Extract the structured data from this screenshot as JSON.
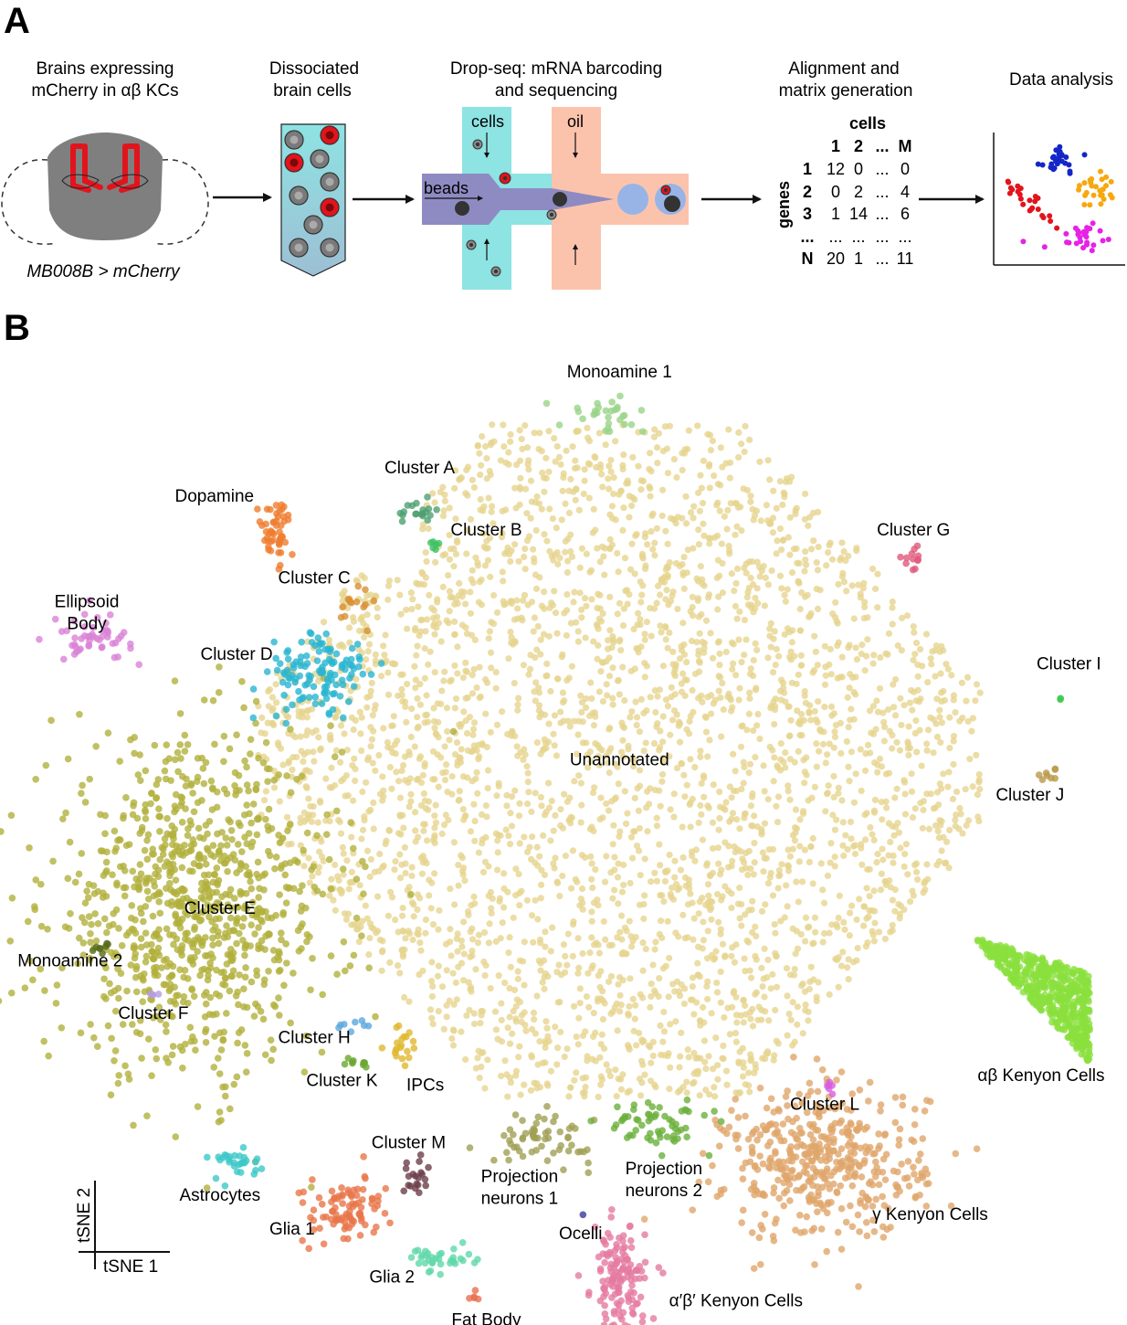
{
  "panel_a": {
    "label": "A",
    "step1": {
      "line1": "Brains expressing",
      "line2": "mCherry in αβ KCs",
      "caption": "MB008B > mCherry"
    },
    "step2": {
      "line1": "Dissociated",
      "line2": "brain cells"
    },
    "step3": {
      "line1": "Drop-seq: mRNA barcoding",
      "line2": "and sequencing",
      "cells": "cells",
      "oil": "oil",
      "beads": "beads"
    },
    "step4": {
      "line1": "Alignment and",
      "line2": "matrix generation",
      "cells_header": "cells",
      "genes_label": "genes",
      "col_headers": [
        "1",
        "2",
        "...",
        "M"
      ],
      "rows": [
        {
          "label": "1",
          "values": [
            "12",
            "0",
            "...",
            "0"
          ]
        },
        {
          "label": "2",
          "values": [
            "0",
            "2",
            "...",
            "4"
          ]
        },
        {
          "label": "3",
          "values": [
            "1",
            "14",
            "...",
            "6"
          ]
        },
        {
          "label": "...",
          "values": [
            "...",
            "...",
            "...",
            "..."
          ]
        },
        {
          "label": "N",
          "values": [
            "20",
            "1",
            "...",
            "11"
          ]
        }
      ]
    },
    "step5": {
      "line1": "Data analysis"
    },
    "colors": {
      "cyan": "#8ee3e3",
      "salmon": "#fcc3ac",
      "purple": "#8e8bc2",
      "red": "#e1141c",
      "gray": "#7a7a7a"
    }
  },
  "panel_b": {
    "label": "B"
  },
  "chart_data": {
    "type": "scatter",
    "title": "",
    "xlabel": "tSNE 1",
    "ylabel": "tSNE 2",
    "xlim": [
      0,
      100
    ],
    "ylim": [
      0,
      100
    ],
    "grid": false,
    "legend": "none",
    "note": "tSNE coordinates shown in arbitrary normalized units; cluster labels annotate each population",
    "clusters": [
      {
        "name": "Unannotated",
        "color": "#e6d58f",
        "cx": 55,
        "cy": 58,
        "sx": 21,
        "sy": 19,
        "n": 3200,
        "shape": "blob",
        "label_pos": [
          55,
          57.5
        ]
      },
      {
        "name": "Cluster E",
        "color": "#b1b03c",
        "cx": 16.5,
        "cy": 42.5,
        "sx": 6.5,
        "sy": 8.5,
        "n": 950,
        "shape": "blob",
        "label_pos": [
          19,
          42
        ]
      },
      {
        "name": "αβ Kenyon Cells",
        "color": "#8ae03c",
        "cx": 92,
        "cy": 33,
        "sx": 5,
        "sy": 4,
        "n": 500,
        "shape": "tri",
        "label_pos": [
          93,
          24.5
        ]
      },
      {
        "name": "γ Kenyon Cells",
        "color": "#e0a66c",
        "cx": 73.5,
        "cy": 16,
        "sx": 4.5,
        "sy": 4,
        "n": 450,
        "shape": "blob",
        "label_pos": [
          83,
          10
        ]
      },
      {
        "name": "α′β′ Kenyon Cells",
        "color": "#e57aa0",
        "cx": 55,
        "cy": 3.5,
        "sx": 1.2,
        "sy": 2.8,
        "n": 140,
        "shape": "blob",
        "label_pos": [
          65.5,
          1
        ]
      },
      {
        "name": "Cluster D",
        "color": "#29b5d1",
        "cx": 28,
        "cy": 67,
        "sx": 2.3,
        "sy": 2.3,
        "n": 120,
        "shape": "blob",
        "label_pos": [
          20.5,
          68.5
        ]
      },
      {
        "name": "Dopamine",
        "color": "#ef7d2f",
        "cx": 24,
        "cy": 82,
        "sx": 0.8,
        "sy": 1.6,
        "n": 50,
        "shape": "blob",
        "label_pos": [
          18.5,
          85
        ]
      },
      {
        "name": "Ellipsoid Body",
        "color": "#d982d6",
        "cx": 7.5,
        "cy": 71,
        "sx": 1.8,
        "sy": 1.2,
        "n": 50,
        "shape": "blob",
        "label_pos": [
          7,
          74
        ]
      },
      {
        "name": "Monoamine 1",
        "color": "#98d488",
        "cx": 53.5,
        "cy": 94,
        "sx": 2,
        "sy": 0.8,
        "n": 30,
        "shape": "blob",
        "label_pos": [
          55,
          98
        ]
      },
      {
        "name": "Cluster A",
        "color": "#4da070",
        "cx": 37,
        "cy": 84,
        "sx": 1,
        "sy": 0.6,
        "n": 20,
        "shape": "blob",
        "label_pos": [
          37,
          88
        ]
      },
      {
        "name": "Cluster B",
        "color": "#3cc062",
        "cx": 38.5,
        "cy": 80.8,
        "sx": 0.3,
        "sy": 0.3,
        "n": 6,
        "shape": "blob",
        "label_pos": [
          43,
          81.5
        ]
      },
      {
        "name": "Cluster C",
        "color": "#d89033",
        "cx": 31,
        "cy": 74.5,
        "sx": 0.8,
        "sy": 1,
        "n": 14,
        "shape": "blob",
        "label_pos": [
          27.5,
          76.5
        ]
      },
      {
        "name": "Cluster G",
        "color": "#e05a7c",
        "cx": 81.5,
        "cy": 79,
        "sx": 0.4,
        "sy": 0.7,
        "n": 12,
        "shape": "blob",
        "label_pos": [
          81.5,
          81.5
        ]
      },
      {
        "name": "Cluster I",
        "color": "#3cc64a",
        "cx": 94.8,
        "cy": 64.5,
        "sx": 0.1,
        "sy": 0.1,
        "n": 2,
        "shape": "blob",
        "label_pos": [
          95.5,
          67.5
        ]
      },
      {
        "name": "Cluster J",
        "color": "#b89a48",
        "cx": 93.5,
        "cy": 56.5,
        "sx": 0.8,
        "sy": 0.4,
        "n": 8,
        "shape": "blob",
        "label_pos": [
          92,
          53.8
        ]
      },
      {
        "name": "Monoamine 2",
        "color": "#556b1c",
        "cx": 8.5,
        "cy": 38.5,
        "sx": 0.6,
        "sy": 0.3,
        "n": 8,
        "shape": "blob",
        "label_pos": [
          5.5,
          36.5
        ]
      },
      {
        "name": "Cluster F",
        "color": "#b49ee0",
        "cx": 13.5,
        "cy": 33.5,
        "sx": 0.5,
        "sy": 0.2,
        "n": 4,
        "shape": "blob",
        "label_pos": [
          13,
          31
        ]
      },
      {
        "name": "Cluster H",
        "color": "#5ba8e0",
        "cx": 31.5,
        "cy": 30.5,
        "sx": 0.8,
        "sy": 0.3,
        "n": 8,
        "shape": "blob",
        "label_pos": [
          27.5,
          28.5
        ]
      },
      {
        "name": "Cluster K",
        "color": "#6aa830",
        "cx": 31.5,
        "cy": 26.5,
        "sx": 1,
        "sy": 0.3,
        "n": 10,
        "shape": "blob",
        "label_pos": [
          30,
          24
        ]
      },
      {
        "name": "IPCs",
        "color": "#e0b830",
        "cx": 35.5,
        "cy": 28.5,
        "sx": 0.8,
        "sy": 1.2,
        "n": 20,
        "shape": "blob",
        "label_pos": [
          37.5,
          23.5
        ]
      },
      {
        "name": "Cluster L",
        "color": "#d85ee0",
        "cx": 74,
        "cy": 24,
        "sx": 0.3,
        "sy": 0.3,
        "n": 6,
        "shape": "blob",
        "label_pos": [
          73.5,
          21.5
        ]
      },
      {
        "name": "Projection neurons 1",
        "color": "#a0a055",
        "cx": 48,
        "cy": 18.5,
        "sx": 2.2,
        "sy": 1.3,
        "n": 60,
        "shape": "blob",
        "label_pos": [
          46,
          14
        ]
      },
      {
        "name": "Projection neurons 2",
        "color": "#6cb03c",
        "cx": 58.5,
        "cy": 20,
        "sx": 2.3,
        "sy": 1.2,
        "n": 60,
        "shape": "blob",
        "label_pos": [
          59,
          14.8
        ]
      },
      {
        "name": "Cluster M",
        "color": "#6b3e4a",
        "cx": 36.5,
        "cy": 14.5,
        "sx": 0.6,
        "sy": 1,
        "n": 20,
        "shape": "blob",
        "label_pos": [
          36,
          17.5
        ]
      },
      {
        "name": "Astrocytes",
        "color": "#3cc8c8",
        "cx": 20,
        "cy": 16,
        "sx": 1.3,
        "sy": 0.9,
        "n": 30,
        "shape": "blob",
        "label_pos": [
          19,
          12
        ]
      },
      {
        "name": "Glia 1",
        "color": "#e8754a",
        "cx": 30.5,
        "cy": 11,
        "sx": 2,
        "sy": 1.7,
        "n": 90,
        "shape": "blob",
        "label_pos": [
          25.5,
          8.5
        ]
      },
      {
        "name": "Glia 2",
        "color": "#5fd8aa",
        "cx": 39,
        "cy": 6,
        "sx": 1.4,
        "sy": 0.6,
        "n": 35,
        "shape": "blob",
        "label_pos": [
          34.5,
          3.5
        ]
      },
      {
        "name": "Fat Body",
        "color": "#e87050",
        "cx": 41.8,
        "cy": 2,
        "sx": 0.3,
        "sy": 0.6,
        "n": 5,
        "shape": "blob",
        "label_pos": [
          43,
          -1
        ]
      },
      {
        "name": "Ocelli",
        "color": "#3a3a9a",
        "cx": 51.5,
        "cy": 10.5,
        "sx": 0.1,
        "sy": 0.1,
        "n": 1,
        "shape": "blob",
        "label_pos": [
          51.5,
          8
        ]
      }
    ]
  }
}
